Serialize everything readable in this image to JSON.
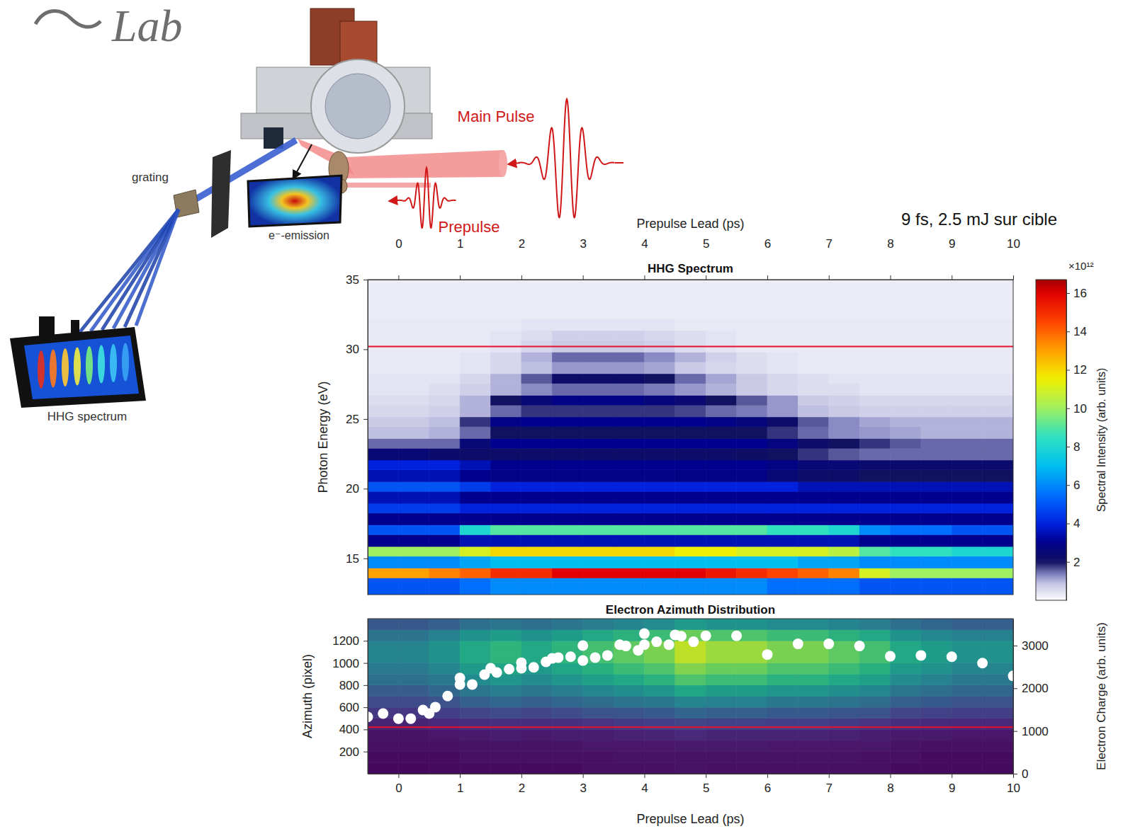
{
  "header": {
    "logo_text": "Lab",
    "conditions": "9 fs, 2.5 mJ sur cible"
  },
  "diagram": {
    "main_pulse_label": "Main Pulse",
    "prepulse_label": "Prepulse",
    "grating_label": "grating",
    "emission_label": "e⁻-emission",
    "spectrum_label": "HHG spectrum"
  },
  "chart_data": [
    {
      "type": "heatmap",
      "title": "HHG Spectrum",
      "x_label": "Prepulse Lead (ps)",
      "y_label": "Photon Energy (eV)",
      "xlim": [
        -0.5,
        10
      ],
      "xticks": [
        0,
        1,
        2,
        3,
        4,
        5,
        6,
        7,
        8,
        9,
        10
      ],
      "ylim": [
        12.4,
        35
      ],
      "yticks": [
        15,
        20,
        25,
        30,
        35
      ],
      "x_edges": [
        -0.5,
        0,
        0.5,
        1,
        1.5,
        2,
        2.5,
        3,
        3.5,
        4,
        4.5,
        5,
        5.5,
        6,
        6.5,
        7,
        7.5,
        8,
        8.5,
        9,
        9.5,
        10
      ],
      "y_edges": [
        12.4,
        13.6,
        14.3,
        15.15,
        15.85,
        16.7,
        17.4,
        18.25,
        18.95,
        19.8,
        20.5,
        21.35,
        22.05,
        22.9,
        23.6,
        24.45,
        25.15,
        26.0,
        26.7,
        27.55,
        28.25,
        29.1,
        29.8,
        30.65,
        31.35,
        32.2,
        35
      ],
      "cells": [
        [
          5,
          5,
          5,
          5.5,
          6,
          6,
          6,
          6,
          6,
          6,
          6,
          6,
          6,
          5.5,
          5.5,
          5.5,
          5,
          5,
          5,
          5,
          5
        ],
        [
          13,
          13,
          13.5,
          14,
          15,
          15,
          16,
          16,
          16,
          16,
          16,
          15.5,
          15,
          14.5,
          14,
          13.5,
          11,
          10,
          10,
          10,
          10
        ],
        [
          6,
          6,
          6,
          6.5,
          7,
          7,
          7,
          7,
          7,
          7,
          7,
          7,
          7,
          7,
          6.5,
          6.5,
          6,
          6,
          6,
          6,
          6
        ],
        [
          10,
          10,
          10,
          11,
          12,
          12,
          12,
          12,
          12,
          12,
          11.5,
          11.5,
          11,
          11,
          11,
          10.5,
          9,
          8.5,
          8.5,
          8,
          8
        ],
        [
          3,
          3,
          3,
          3.5,
          3.5,
          3.5,
          3.5,
          3.5,
          3.5,
          3.5,
          3.5,
          3.5,
          3.5,
          3.5,
          3.5,
          3.5,
          3,
          3,
          3,
          3,
          3
        ],
        [
          5,
          5,
          5,
          8,
          9,
          9,
          9,
          9,
          9,
          9,
          9,
          9,
          9,
          8.5,
          8.5,
          8,
          6,
          5.5,
          5.5,
          5,
          5
        ],
        [
          3,
          3,
          3,
          3,
          3,
          3,
          3,
          3,
          3,
          3,
          3,
          3,
          3,
          3,
          3,
          3,
          3,
          3,
          3,
          3,
          3
        ],
        [
          4.5,
          4.5,
          4.5,
          4,
          4,
          4,
          4,
          4,
          4,
          4,
          4,
          4,
          4,
          4,
          4,
          4,
          4,
          4,
          4,
          4,
          4
        ],
        [
          3.5,
          3.5,
          3.5,
          3,
          3,
          3,
          3,
          3,
          3,
          3,
          3,
          3,
          3,
          3,
          3,
          3,
          3,
          3,
          3,
          3,
          3
        ],
        [
          5,
          5,
          5,
          4.5,
          4,
          4,
          4,
          4,
          4,
          4,
          4,
          4,
          4,
          4,
          3.5,
          3.5,
          3.5,
          3.5,
          3.5,
          3.5,
          3.5
        ],
        [
          3.5,
          3.5,
          3.5,
          3,
          2.8,
          2.8,
          2.8,
          2.8,
          2.8,
          2.8,
          2.8,
          2.8,
          2.8,
          2.5,
          2.2,
          2.2,
          2,
          2,
          2,
          2,
          2
        ],
        [
          4,
          4,
          4,
          3.5,
          3,
          3,
          3,
          3,
          3,
          3,
          3,
          3,
          3,
          2.8,
          2.5,
          2.5,
          2.3,
          2.3,
          2.3,
          2.3,
          2.3
        ],
        [
          2.5,
          2.5,
          2.3,
          2.2,
          2.2,
          2.2,
          2.2,
          2.2,
          2.2,
          2.2,
          2.2,
          2.2,
          2.1,
          2,
          1.8,
          1.6,
          1.5,
          1.5,
          1.5,
          1.5,
          1.5
        ],
        [
          1.5,
          1.5,
          1.5,
          2.5,
          3,
          3,
          3,
          3,
          3,
          3,
          3,
          3,
          3,
          2.7,
          2.2,
          2,
          1.8,
          1.6,
          1.5,
          1.5,
          1.5
        ],
        [
          0.9,
          0.9,
          1,
          1.5,
          2,
          2,
          2,
          2,
          2,
          2,
          2,
          2,
          2,
          1.8,
          1.5,
          1.3,
          1.2,
          1.1,
          1,
          1,
          1
        ],
        [
          0.8,
          0.8,
          0.9,
          1.8,
          2.8,
          3,
          3,
          3,
          3,
          3,
          3,
          2.8,
          2.6,
          2.2,
          1.6,
          1.3,
          1.1,
          1,
          1,
          1,
          1
        ],
        [
          0.6,
          0.6,
          0.7,
          1,
          1.5,
          1.8,
          1.8,
          1.8,
          1.8,
          1.8,
          1.7,
          1.5,
          1.4,
          1.2,
          0.9,
          0.8,
          0.7,
          0.7,
          0.7,
          0.7,
          0.7
        ],
        [
          0.5,
          0.5,
          0.6,
          1,
          2,
          2.5,
          2.8,
          2.8,
          2.8,
          2.6,
          2.4,
          2,
          1.6,
          1.2,
          0.8,
          0.7,
          0.6,
          0.6,
          0.6,
          0.6,
          0.6
        ],
        [
          0.4,
          0.4,
          0.5,
          0.7,
          1,
          1.3,
          1.5,
          1.5,
          1.5,
          1.4,
          1.2,
          1,
          0.8,
          0.6,
          0.5,
          0.5,
          0.4,
          0.4,
          0.4,
          0.4,
          0.4
        ],
        [
          0.4,
          0.4,
          0.4,
          0.6,
          1,
          1.6,
          2.2,
          2.2,
          2.2,
          2,
          1.5,
          1.1,
          0.8,
          0.6,
          0.5,
          0.4,
          0.4,
          0.4,
          0.4,
          0.4,
          0.4
        ],
        [
          0.3,
          0.3,
          0.3,
          0.4,
          0.6,
          0.9,
          1.2,
          1.2,
          1.2,
          1.1,
          0.8,
          0.6,
          0.5,
          0.4,
          0.3,
          0.3,
          0.3,
          0.3,
          0.3,
          0.3,
          0.3
        ],
        [
          0.3,
          0.3,
          0.3,
          0.4,
          0.6,
          1,
          1.5,
          1.5,
          1.5,
          1.3,
          1,
          0.7,
          0.5,
          0.4,
          0.3,
          0.3,
          0.3,
          0.3,
          0.3,
          0.3,
          0.3
        ],
        [
          0.3,
          0.3,
          0.3,
          0.3,
          0.4,
          0.6,
          0.8,
          0.8,
          0.8,
          0.7,
          0.5,
          0.4,
          0.3,
          0.3,
          0.3,
          0.3,
          0.3,
          0.3,
          0.3,
          0.3,
          0.3
        ],
        [
          0.3,
          0.3,
          0.3,
          0.3,
          0.4,
          0.5,
          0.7,
          0.7,
          0.7,
          0.6,
          0.5,
          0.4,
          0.3,
          0.3,
          0.3,
          0.3,
          0.3,
          0.3,
          0.3,
          0.3,
          0.3
        ],
        [
          0.3,
          0.3,
          0.3,
          0.3,
          0.3,
          0.4,
          0.4,
          0.4,
          0.4,
          0.4,
          0.3,
          0.3,
          0.3,
          0.3,
          0.3,
          0.3,
          0.3,
          0.3,
          0.3,
          0.3,
          0.3
        ],
        [
          0.25,
          0.25,
          0.25,
          0.25,
          0.25,
          0.25,
          0.25,
          0.25,
          0.25,
          0.25,
          0.25,
          0.25,
          0.25,
          0.25,
          0.25,
          0.25,
          0.25,
          0.25,
          0.25,
          0.25,
          0.25
        ]
      ],
      "color_range": [
        0,
        16.7
      ],
      "color_ticks": [
        2,
        4,
        6,
        8,
        10,
        12,
        14,
        16
      ],
      "colorbar_label": "Spectral Intensity (arb. units)",
      "colorbar_multiplier": "×10¹²",
      "reference_line": 30.2
    },
    {
      "type": "heatmap",
      "title": "Electron Azimuth Distribution",
      "x_label": "Prepulse Lead (ps)",
      "y_label": "Azimuth (pixel)",
      "y2_label": "Electron Charge (arb. units)",
      "xlim": [
        -0.5,
        10
      ],
      "xticks": [
        0,
        1,
        2,
        3,
        4,
        5,
        6,
        7,
        8,
        9,
        10
      ],
      "ylim": [
        0,
        1400
      ],
      "yticks": [
        200,
        400,
        600,
        800,
        1000,
        1200
      ],
      "y2lim": [
        0,
        3630
      ],
      "y2ticks": [
        0,
        1000,
        2000,
        3000
      ],
      "x_edges": [
        -0.5,
        0,
        0.5,
        1,
        1.5,
        2,
        2.5,
        3,
        3.5,
        4,
        4.5,
        5,
        5.5,
        6,
        6.5,
        7,
        7.5,
        8,
        8.5,
        9,
        9.5,
        10
      ],
      "y_edges": [
        0,
        100,
        200,
        300,
        400,
        500,
        600,
        700,
        800,
        900,
        1000,
        1100,
        1200,
        1300,
        1400
      ],
      "cells": [
        [
          0.02,
          0.02,
          0.03,
          0.03,
          0.03,
          0.03,
          0.03,
          0.04,
          0.04,
          0.04,
          0.05,
          0.04,
          0.04,
          0.04,
          0.04,
          0.04,
          0.04,
          0.03,
          0.03,
          0.03,
          0.03
        ],
        [
          0.03,
          0.03,
          0.03,
          0.04,
          0.04,
          0.04,
          0.04,
          0.04,
          0.05,
          0.05,
          0.05,
          0.05,
          0.05,
          0.05,
          0.05,
          0.05,
          0.04,
          0.04,
          0.03,
          0.03,
          0.03
        ],
        [
          0.04,
          0.04,
          0.04,
          0.05,
          0.05,
          0.05,
          0.05,
          0.06,
          0.06,
          0.06,
          0.07,
          0.07,
          0.07,
          0.06,
          0.06,
          0.06,
          0.06,
          0.05,
          0.04,
          0.04,
          0.04
        ],
        [
          0.05,
          0.05,
          0.06,
          0.07,
          0.08,
          0.07,
          0.08,
          0.08,
          0.09,
          0.1,
          0.11,
          0.1,
          0.1,
          0.1,
          0.1,
          0.09,
          0.08,
          0.07,
          0.07,
          0.06,
          0.06
        ],
        [
          0.1,
          0.1,
          0.11,
          0.13,
          0.14,
          0.13,
          0.14,
          0.15,
          0.17,
          0.18,
          0.2,
          0.19,
          0.19,
          0.18,
          0.18,
          0.17,
          0.15,
          0.13,
          0.12,
          0.11,
          0.11
        ],
        [
          0.16,
          0.16,
          0.18,
          0.21,
          0.23,
          0.21,
          0.23,
          0.25,
          0.26,
          0.28,
          0.32,
          0.3,
          0.3,
          0.28,
          0.28,
          0.26,
          0.25,
          0.21,
          0.19,
          0.18,
          0.18
        ],
        [
          0.23,
          0.23,
          0.25,
          0.3,
          0.33,
          0.3,
          0.33,
          0.35,
          0.38,
          0.4,
          0.45,
          0.43,
          0.43,
          0.4,
          0.4,
          0.38,
          0.35,
          0.3,
          0.28,
          0.25,
          0.25
        ],
        [
          0.29,
          0.29,
          0.33,
          0.39,
          0.42,
          0.39,
          0.42,
          0.46,
          0.49,
          0.52,
          0.59,
          0.55,
          0.55,
          0.52,
          0.52,
          0.49,
          0.46,
          0.39,
          0.36,
          0.33,
          0.33
        ],
        [
          0.36,
          0.36,
          0.4,
          0.48,
          0.52,
          0.48,
          0.52,
          0.56,
          0.6,
          0.64,
          0.72,
          0.68,
          0.68,
          0.64,
          0.64,
          0.6,
          0.56,
          0.48,
          0.44,
          0.4,
          0.4
        ],
        [
          0.41,
          0.41,
          0.45,
          0.54,
          0.59,
          0.54,
          0.59,
          0.63,
          0.68,
          0.72,
          0.81,
          0.77,
          0.77,
          0.72,
          0.72,
          0.68,
          0.63,
          0.54,
          0.5,
          0.45,
          0.45
        ],
        [
          0.45,
          0.45,
          0.5,
          0.6,
          0.65,
          0.6,
          0.65,
          0.7,
          0.75,
          0.8,
          0.9,
          0.85,
          0.85,
          0.8,
          0.8,
          0.75,
          0.7,
          0.6,
          0.55,
          0.5,
          0.5
        ],
        [
          0.45,
          0.45,
          0.5,
          0.6,
          0.65,
          0.6,
          0.65,
          0.7,
          0.75,
          0.8,
          0.9,
          0.85,
          0.85,
          0.8,
          0.8,
          0.75,
          0.7,
          0.6,
          0.55,
          0.5,
          0.5
        ],
        [
          0.38,
          0.38,
          0.43,
          0.51,
          0.55,
          0.51,
          0.55,
          0.6,
          0.64,
          0.68,
          0.77,
          0.72,
          0.72,
          0.68,
          0.68,
          0.64,
          0.6,
          0.51,
          0.47,
          0.43,
          0.43
        ],
        [
          0.27,
          0.27,
          0.3,
          0.36,
          0.39,
          0.36,
          0.39,
          0.42,
          0.45,
          0.48,
          0.54,
          0.51,
          0.51,
          0.48,
          0.48,
          0.45,
          0.42,
          0.36,
          0.33,
          0.3,
          0.3
        ]
      ],
      "color_range": [
        0,
        1
      ],
      "reference_line": 420,
      "series": [
        {
          "type": "scatter",
          "axis": "y2",
          "color": "#ffffff",
          "marker": "circle",
          "x": [
            -0.5,
            -0.25,
            0,
            0.2,
            0.4,
            0.5,
            0.6,
            0.8,
            1,
            1,
            1.2,
            1.4,
            1.5,
            1.6,
            1.8,
            2,
            2,
            2.2,
            2.4,
            2.5,
            2.6,
            2.8,
            3,
            3,
            3.2,
            3.4,
            3.6,
            3.7,
            3.9,
            4,
            4,
            4.2,
            4.4,
            4.5,
            4.6,
            4.8,
            5,
            5.5,
            6,
            6.5,
            7,
            7.5,
            8,
            8.5,
            9,
            9.5,
            10
          ],
          "values": [
            1330,
            1410,
            1290,
            1290,
            1490,
            1410,
            1560,
            1820,
            2240,
            2090,
            2090,
            2320,
            2470,
            2370,
            2450,
            2600,
            2470,
            2490,
            2620,
            2700,
            2720,
            2740,
            3000,
            2650,
            2720,
            2770,
            3020,
            2990,
            2890,
            3280,
            3020,
            3090,
            3020,
            3250,
            3220,
            3090,
            3230,
            3230,
            2790,
            3040,
            3040,
            2990,
            2750,
            2770,
            2740,
            2590,
            2290
          ]
        }
      ]
    }
  ]
}
